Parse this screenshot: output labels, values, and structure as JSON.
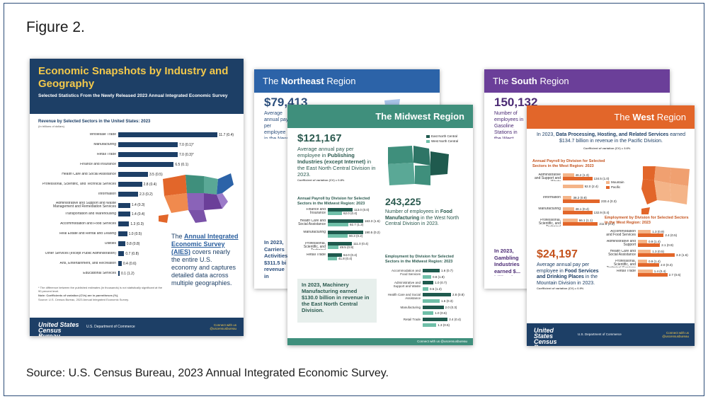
{
  "figure_title": "Figure 2.",
  "source_caption": "Source: U.S. Census Bureau, 2023 Annual Integrated Economic Survey.",
  "sheet1": {
    "title": "Economic Snapshots by Industry and Geography",
    "subtitle": "Selected Statistics From the Newly Released 2023 Annual Integrated Economic Survey",
    "chart_title": "Revenue by Selected Sectors in the United States: 2023",
    "chart_units": "(In trillions of dollars)",
    "bars": [
      {
        "label": "Wholesale Trade",
        "value": "11.7 (0.4)",
        "pct": 1.0
      },
      {
        "label": "Manufacturing",
        "value": "7.0 (0.1)*",
        "pct": 0.6
      },
      {
        "label": "Retail Trade",
        "value": "7.0 (0.3)*",
        "pct": 0.6
      },
      {
        "label": "Finance and Insurance",
        "value": "6.5 (0.1)",
        "pct": 0.56
      },
      {
        "label": "Health Care and Social Assistance",
        "value": "3.5 (0.5)",
        "pct": 0.3
      },
      {
        "label": "Professional, Scientific, and Technical Services",
        "value": "2.8 (0.4)",
        "pct": 0.24
      },
      {
        "label": "Information",
        "value": "2.3 (0.2)",
        "pct": 0.2
      },
      {
        "label": "Administrative and Support and Waste Management and Remediation Services",
        "value": "1.4 (0.3)",
        "pct": 0.12
      },
      {
        "label": "Transportation and Warehousing",
        "value": "1.4 (0.4)",
        "pct": 0.12
      },
      {
        "label": "Accommodation and Food Services",
        "value": "1.3 (0.3)",
        "pct": 0.11
      },
      {
        "label": "Real Estate and Rental and Leasing",
        "value": "1.0 (0.5)",
        "pct": 0.09
      },
      {
        "label": "Utilities",
        "value": "0.8 (0.8)",
        "pct": 0.07
      },
      {
        "label": "Other Services (except Public Administration)",
        "value": "0.7 (0.8)",
        "pct": 0.06
      },
      {
        "label": "Arts, Entertainment, and Recreation",
        "value": "0.4 (0.6)",
        "pct": 0.035
      },
      {
        "label": "Educational Services",
        "value": "0.1 (1.2)",
        "pct": 0.01
      }
    ],
    "aies_pre": "The ",
    "aies_link": "Annual Integrated Economic Survey (AIES)",
    "aies_post": " covers nearly the entire U.S. economy and captures detailed data across multiple geographies.",
    "footnote1": "* The difference between the published estimates (in thousands) is not statistically significant at the 90 percent level.",
    "footnote2": "Note: Coefficients of variation (CVs) are in parentheses (%).",
    "footnote3": "Source: U.S. Census Bureau, 2023 Annual Integrated Economic Survey.",
    "logo": "United States Census Bureau",
    "dept": "U.S. Department of Commerce",
    "connect": "Connect with us @uscensusbureau"
  },
  "northeast": {
    "title_pre": "The ",
    "title_bold": "Northeast",
    "title_post": " Region",
    "stat": "$79,413",
    "text": "Average annual pay per employee in the New England Division in 2023.",
    "lower": "In 2023, Carriers Activities $311.5 bi revenue in England"
  },
  "midwest": {
    "title": "The Midwest Region",
    "stat1": "$121,167",
    "text1_pre": "Average annual pay per employee in ",
    "text1_bold": "Publishing Industries (except Internet)",
    "text1_post": " in the East North Central Division in 2023.",
    "cv1": "Coefficient of variation (CV) = 0.8%",
    "chart1_title": "Annual Payroll by Division for Selected Sectors in the Midwest Region: 2023",
    "chart1_bars": [
      {
        "label": "Finance and Insurance",
        "v1": "113.0 (0.0)",
        "v2": "62.0 (0.4)",
        "p1": 0.7,
        "p2": 0.4
      },
      {
        "label": "Health Care and Social Assistance",
        "v1": "163.3 (1.6)",
        "v2": "92.7 (1.2)",
        "p1": 1.0,
        "p2": 0.58
      },
      {
        "label": "Manufacturing",
        "v1": "190.5 (0.2)",
        "v2": "90.3 (0.2)",
        "p1": 1.0,
        "p2": 0.56
      },
      {
        "label": "Professional, Scientific, and Technical Services",
        "v1": "111.0 (0.4)",
        "v2": "49.5 (0.9)",
        "p1": 0.68,
        "p2": 0.3
      },
      {
        "label": "Retail Trade",
        "v1": "64.0 (0.4)",
        "v2": "41.8 (0.4)",
        "p1": 0.4,
        "p2": 0.26
      }
    ],
    "stat2": "243,225",
    "text2_pre": "Number of employees in ",
    "text2_bold": "Food Manufacturing",
    "text2_post": " in the West North Central Division in 2023.",
    "box_text": "In 2023, Machinery Manufacturing earned $130.0 billion in revenue in the East North Central Division.",
    "chart2_title": "Employment by Division for Selected Sectors in the Midwest Region: 2023",
    "chart2_bars": [
      {
        "label": "Accommodation and Food Services",
        "value": "1.6 (0.7)",
        "pct": 0.6
      },
      {
        "label": "",
        "value": "0.8 (1.8)",
        "pct": 0.3
      },
      {
        "label": "Administrative and Support and Waste Management",
        "value": "1.0 (0.7)",
        "pct": 0.38
      },
      {
        "label": "",
        "value": "0.5 (1.2)",
        "pct": 0.2
      },
      {
        "label": "Health Care and Social Assistance",
        "value": "2.8 (0.8)",
        "pct": 1.0
      },
      {
        "label": "",
        "value": "1.6 (0.3)",
        "pct": 0.6
      },
      {
        "label": "Manufacturing",
        "value": "2.0 (0.3)",
        "pct": 0.74
      },
      {
        "label": "",
        "value": "1.0 (0.6)",
        "pct": 0.38
      },
      {
        "label": "Retail Trade",
        "value": "2.4 (0.4)",
        "pct": 0.88
      },
      {
        "label": "",
        "value": "1.3 (0.5)",
        "pct": 0.48
      }
    ],
    "legend1": "East North Central",
    "legend2": "West North Central",
    "connect": "Connect with us @uscensusbureau"
  },
  "south": {
    "title_pre": "The ",
    "title_bold": "South",
    "title_post": " Region",
    "stat": "150,132",
    "text": "Number of employees in Gasoline Stations in the West South Central Division in 2023.",
    "lower": "In 2023, Gambling Industries earned $... billion in the South Atlantic"
  },
  "west": {
    "title_pre": "The ",
    "title_bold": "West",
    "title_post": " Region",
    "headline_pre": "In 2023, ",
    "headline_bold": "Data Processing, Hosting, and Related Services",
    "headline_post": " earned $134.7 billion in revenue in the Pacific Division.",
    "cv1": "Coefficient of variation (CV) = 3.6%",
    "chart1_title": "Annual Payroll by Division for Selected Sectors in the West Region: 2023",
    "chart1_bars": [
      {
        "label": "Administrative and Support and Waste Management",
        "v1": "46.2 (1.3)",
        "v2": "134.5 (1.0)",
        "p1": 0.3,
        "p2": 0.8
      },
      {
        "label": "",
        "v1": "92.0 (2.4)",
        "v2": "",
        "p1": 0.55,
        "p2": 0
      },
      {
        "label": "Information",
        "v1": "38.2 (0.8)",
        "v2": "233.4 (0.3)",
        "p1": 0.24,
        "p2": 1.0
      },
      {
        "label": "Manufacturing",
        "v1": "48.1 (0.4)",
        "v2": "132.9 (0.4)",
        "p1": 0.3,
        "p2": 0.8
      },
      {
        "label": "Professional, Scientific, and Technical Services",
        "v1": "66.1 (1.1)",
        "v2": "211.8 (0.3)",
        "p1": 0.4,
        "p2": 0.95
      }
    ],
    "legend1": "Mountain",
    "legend2": "Pacific",
    "chart2_title": "Employment by Division for Selected Sectors in the West Region: 2023",
    "chart2_bars": [
      {
        "label": "Accommodation and Food Services",
        "v1": "1.3 (0.9)",
        "v2": "2.4 (0.5)",
        "p1": 0.35,
        "p2": 0.7
      },
      {
        "label": "Administrative and Support",
        "v1": "0.9 (1.4)",
        "v2": "2.1 (0.9)",
        "p1": 0.25,
        "p2": 0.6
      },
      {
        "label": "Health Care and Social Assistance",
        "v1": "1.3 (0.5)",
        "v2": "3.3 (1.6)",
        "p1": 0.35,
        "p2": 1.0
      },
      {
        "label": "Professional, Scientific, and Technical Services",
        "v1": "0.9 (1.4)",
        "v2": "2.0 (0.3)",
        "p1": 0.25,
        "p2": 0.58
      },
      {
        "label": "Retail Trade",
        "v1": "1.4 (0.4)",
        "v2": "2.7 (0.6)",
        "p1": 0.4,
        "p2": 0.8
      }
    ],
    "stat": "$24,197",
    "text_pre": "Average annual pay per employee in ",
    "text_bold": "Food Services and Drinking Places",
    "text_post": " in the Mountain Division in 2023.",
    "cv2": "Coefficient of variation (CV) = 0.9%",
    "logo": "United States Census Bureau",
    "dept": "U.S. Department of Commerce",
    "connect": "Connect with us @uscensusbureau"
  },
  "colors": {
    "navy": "#1d3f66",
    "gold": "#f2c84b",
    "northeast": "#2c63a8",
    "midwest": "#3f8f7c",
    "south": "#6b3f99",
    "west": "#e2662a",
    "frame": "#2d4d78"
  }
}
